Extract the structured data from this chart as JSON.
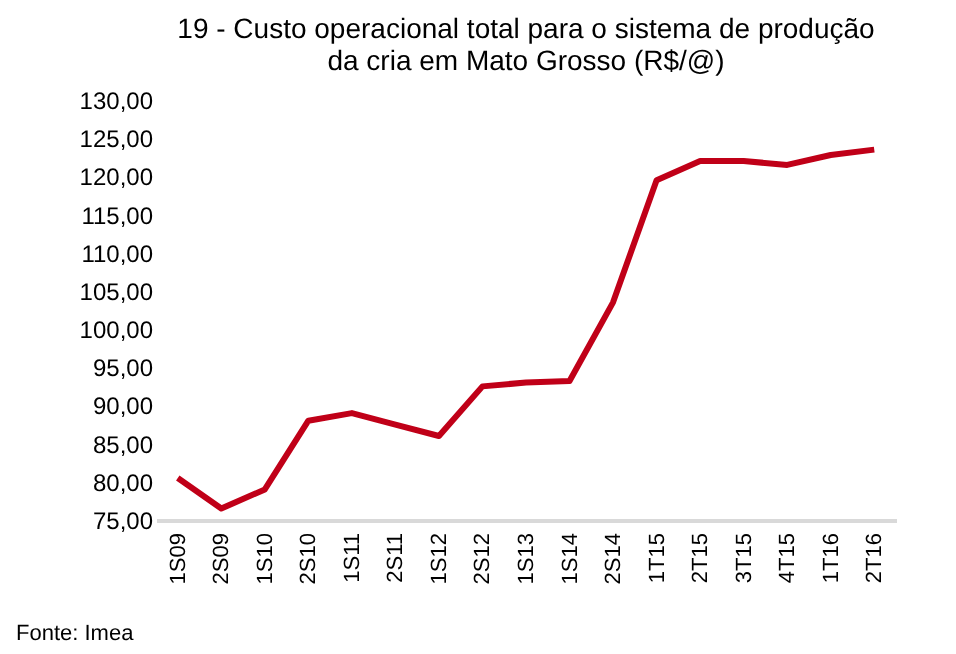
{
  "chart_data": {
    "type": "line",
    "title": [
      "19 - Custo operacional total para o sistema de produção",
      "da cria em Mato Grosso (R$/@)"
    ],
    "categories": [
      "1S09",
      "2S09",
      "1S10",
      "2S10",
      "1S11",
      "2S11",
      "1S12",
      "2S12",
      "1S13",
      "1S14",
      "2S14",
      "1T15",
      "2T15",
      "3T15",
      "4T15",
      "1T16",
      "2T16"
    ],
    "series": [
      {
        "color": "#c00018",
        "values": [
          80.5,
          76.5,
          79,
          88,
          89,
          87.5,
          86,
          92.5,
          93,
          93.2,
          103.5,
          119.5,
          122,
          122,
          121.5,
          122.8,
          123.5
        ]
      }
    ],
    "ylim": [
      75,
      130
    ],
    "yticks": [
      {
        "value": 75,
        "label": "75,00"
      },
      {
        "value": 80,
        "label": "80,00"
      },
      {
        "value": 85,
        "label": "85,00"
      },
      {
        "value": 90,
        "label": "90,00"
      },
      {
        "value": 95,
        "label": "95,00"
      },
      {
        "value": 100,
        "label": "100,00"
      },
      {
        "value": 105,
        "label": "105,00"
      },
      {
        "value": 110,
        "label": "110,00"
      },
      {
        "value": 115,
        "label": "115,00"
      },
      {
        "value": 120,
        "label": "120,00"
      },
      {
        "value": 125,
        "label": "125,00"
      },
      {
        "value": 130,
        "label": "130,00"
      }
    ],
    "grid": false,
    "marker": "none",
    "line_style": "solid",
    "annotations": [
      "Fonte: Imea"
    ]
  }
}
